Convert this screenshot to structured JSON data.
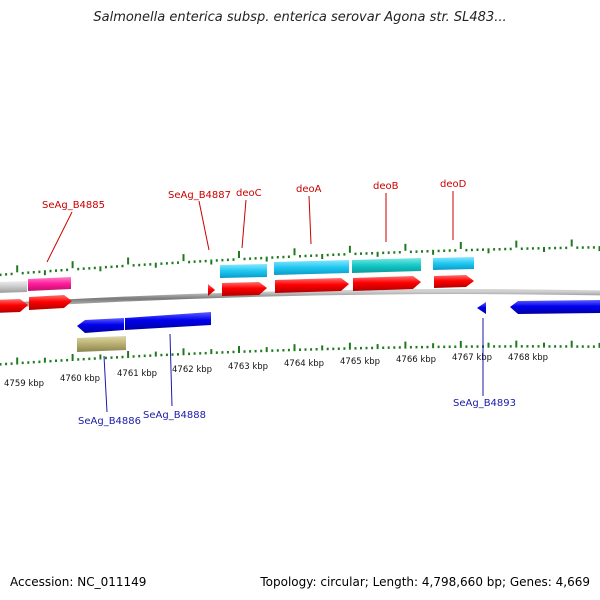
{
  "title": "Salmonella enterica subsp. enterica serovar Agona str. SL483...",
  "footer": {
    "accession": "Accession: NC_011149",
    "summary": "Topology: circular; Length: 4,798,660 bp; Genes: 4,669"
  },
  "colors": {
    "upper_label": "#cc0000",
    "lower_label": "#1a1aaa",
    "tick": "#1f7a1f",
    "backbone": "#8c8c8c",
    "cds_red": "#ff0000",
    "cds_blue": "#0000ee",
    "gene_lightblue": "#1ec8f0",
    "gene_teal": "#14c8c8",
    "gene_pink": "#ff1a9a",
    "gene_gray": "#c8c8c8",
    "gene_olive": "#b8b070"
  },
  "ticks": [
    {
      "label": "4759 kbp"
    },
    {
      "label": "4760 kbp"
    },
    {
      "label": "4761 kbp"
    },
    {
      "label": "4762 kbp"
    },
    {
      "label": "4763 kbp"
    },
    {
      "label": "4764 kbp"
    },
    {
      "label": "4765 kbp"
    },
    {
      "label": "4766 kbp"
    },
    {
      "label": "4767 kbp"
    },
    {
      "label": "4768 kbp"
    }
  ],
  "gene_labels_top": [
    {
      "name": "SeAg_B4885"
    },
    {
      "name": "SeAg_B4887"
    },
    {
      "name": "deoC"
    },
    {
      "name": "deoA"
    },
    {
      "name": "deoB"
    },
    {
      "name": "deoD"
    }
  ],
  "gene_labels_bottom": [
    {
      "name": "SeAg_B4886"
    },
    {
      "name": "SeAg_B4888"
    },
    {
      "name": "SeAg_B4893"
    }
  ]
}
